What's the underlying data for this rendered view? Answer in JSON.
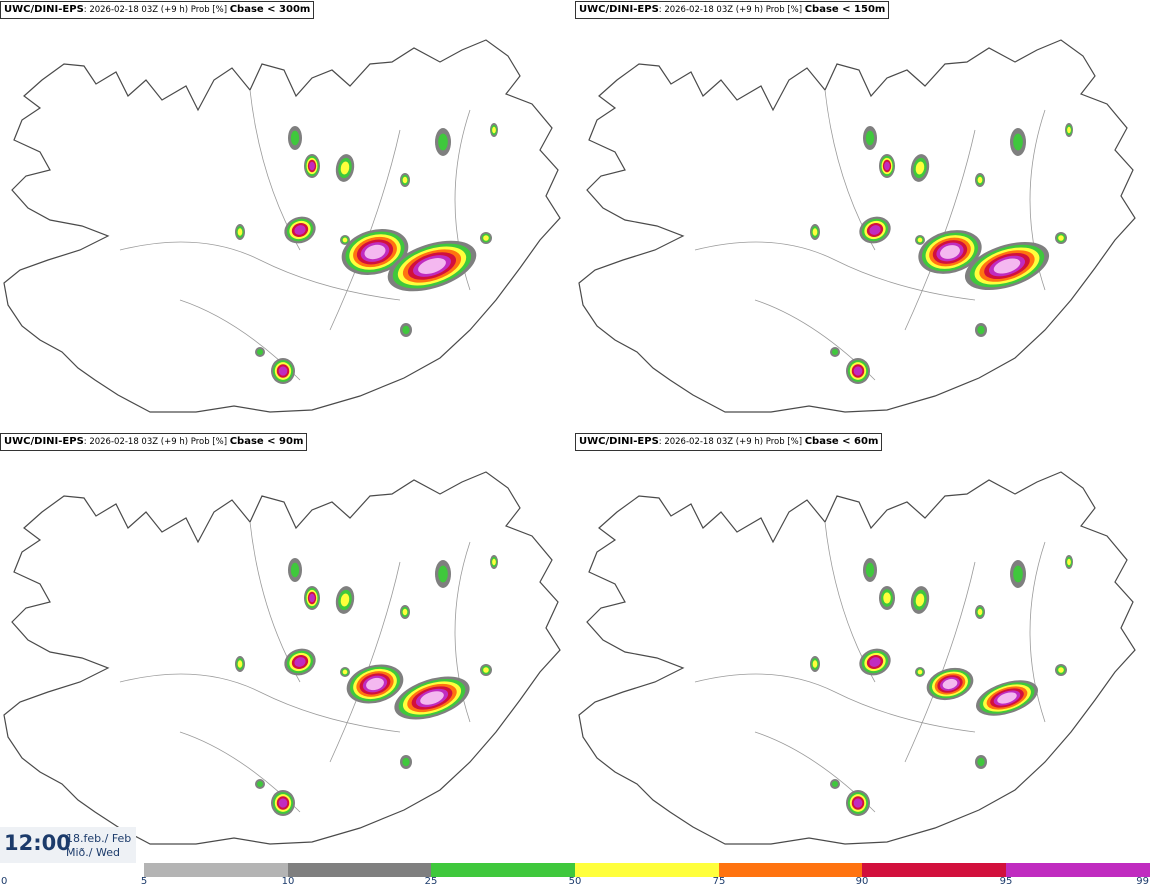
{
  "panels": [
    {
      "id": "p300",
      "model": "UWC/DINI-EPS",
      "meta": ": 2026-02-18 03Z (+9 h) Prob [%] ",
      "variable": "Cbase < 300m"
    },
    {
      "id": "p150",
      "model": "UWC/DINI-EPS",
      "meta": ": 2026-02-18 03Z (+9 h) Prob [%] ",
      "variable": "Cbase < 150m"
    },
    {
      "id": "p90",
      "model": "UWC/DINI-EPS",
      "meta": ": 2026-02-18 03Z (+9 h) Prob [%] ",
      "variable": "Cbase < 90m"
    },
    {
      "id": "p60",
      "model": "UWC/DINI-EPS",
      "meta": ": 2026-02-18 03Z (+9 h) Prob [%] ",
      "variable": "Cbase < 60m"
    }
  ],
  "valid_time": {
    "time": "12:00",
    "date": "18.feb./ Feb",
    "weekday": "Mið./ Wed"
  },
  "legend": {
    "ticks": [
      "0",
      "5",
      "10",
      "25",
      "50",
      "75",
      "90",
      "95",
      "99"
    ],
    "colors": [
      "#b4b4b4",
      "#7f7f7f",
      "#3fc83c",
      "#ffff3c",
      "#ff7310",
      "#d2103c",
      "#c02cc0",
      "#f4b8f0"
    ]
  }
}
